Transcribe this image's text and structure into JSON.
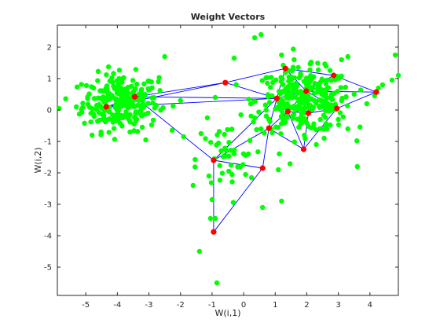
{
  "chart_data": {
    "type": "scatter",
    "title": "Weight Vectors",
    "xlabel": "W(i,1)",
    "ylabel": "W(i,2)",
    "xlim": [
      -5.9,
      4.9
    ],
    "ylim": [
      -5.9,
      2.7
    ],
    "xticks": [
      -5,
      -4,
      -3,
      -2,
      -1,
      0,
      1,
      2,
      3,
      4
    ],
    "yticks": [
      -5,
      -4,
      -3,
      -2,
      -1,
      0,
      1,
      2
    ],
    "grid": false,
    "box": true,
    "colors": {
      "data": "#00ff00",
      "weights": "#ff0000",
      "edges": "#0000ff",
      "axes": "#262626"
    },
    "clusters": [
      {
        "cx": -3.9,
        "cy": 0.25,
        "sx": 0.6,
        "sy": 0.45,
        "n": 260
      },
      {
        "cx": 1.9,
        "cy": 0.3,
        "sx": 0.75,
        "sy": 0.5,
        "n": 300
      },
      {
        "cx": -0.6,
        "cy": -1.6,
        "sx": 0.45,
        "sy": 0.6,
        "n": 40
      }
    ],
    "outliers": [
      [
        -5.85,
        0.05
      ],
      [
        -5.3,
        0.1
      ],
      [
        -4.75,
        0.7
      ],
      [
        -4.8,
        -0.8
      ],
      [
        -3.6,
        -0.7
      ],
      [
        -3.1,
        -0.95
      ],
      [
        -2.5,
        1.7
      ],
      [
        -2.7,
        0.9
      ],
      [
        -2.0,
        0.3
      ],
      [
        -1.9,
        -0.85
      ],
      [
        -1.35,
        -0.75
      ],
      [
        -1.15,
        -0.25
      ],
      [
        -0.3,
        1.65
      ],
      [
        0.35,
        2.3
      ],
      [
        0.55,
        2.4
      ],
      [
        0.55,
        -0.6
      ],
      [
        0.35,
        -0.25
      ],
      [
        -0.9,
        0.4
      ],
      [
        -1.0,
        -2.85
      ],
      [
        -0.9,
        -3.45
      ],
      [
        -1.05,
        -3.45
      ],
      [
        -0.85,
        -5.5
      ],
      [
        -1.4,
        -4.5
      ],
      [
        -1.6,
        -2.4
      ],
      [
        -1.1,
        -2.1
      ],
      [
        -0.4,
        -1.75
      ],
      [
        0.15,
        -1.4
      ],
      [
        0.6,
        -3.1
      ],
      [
        1.2,
        -2.9
      ],
      [
        1.1,
        -1.9
      ],
      [
        2.3,
        -1.1
      ],
      [
        2.55,
        -0.9
      ],
      [
        3.3,
        -0.6
      ],
      [
        3.6,
        -1.8
      ],
      [
        3.0,
        -0.3
      ],
      [
        3.5,
        0.5
      ],
      [
        4.7,
        0.95
      ],
      [
        4.9,
        1.1
      ],
      [
        4.8,
        1.75
      ],
      [
        4.4,
        0.8
      ],
      [
        4.15,
        0.45
      ],
      [
        3.9,
        0.2
      ],
      [
        3.1,
        1.6
      ],
      [
        3.3,
        1.7
      ],
      [
        1.6,
        1.6
      ],
      [
        1.2,
        1.75
      ]
    ],
    "weights": [
      [
        -4.35,
        0.1
      ],
      [
        -3.45,
        0.42
      ],
      [
        -0.58,
        0.87
      ],
      [
        1.32,
        1.32
      ],
      [
        2.85,
        1.1
      ],
      [
        4.2,
        0.57
      ],
      [
        1.05,
        0.37
      ],
      [
        1.98,
        0.6
      ],
      [
        1.4,
        -0.05
      ],
      [
        2.05,
        -0.1
      ],
      [
        2.95,
        0.05
      ],
      [
        0.8,
        -0.58
      ],
      [
        1.9,
        -1.25
      ],
      [
        -0.95,
        -1.6
      ],
      [
        0.6,
        -1.85
      ],
      [
        -0.95,
        -3.88
      ]
    ],
    "edges": [
      [
        0,
        1
      ],
      [
        0,
        2
      ],
      [
        0,
        6
      ],
      [
        1,
        6
      ],
      [
        1,
        13
      ],
      [
        1,
        2
      ],
      [
        2,
        3
      ],
      [
        2,
        6
      ],
      [
        3,
        4
      ],
      [
        3,
        6
      ],
      [
        3,
        7
      ],
      [
        4,
        5
      ],
      [
        4,
        7
      ],
      [
        5,
        7
      ],
      [
        5,
        10
      ],
      [
        6,
        7
      ],
      [
        6,
        8
      ],
      [
        6,
        11
      ],
      [
        7,
        8
      ],
      [
        7,
        9
      ],
      [
        7,
        10
      ],
      [
        8,
        9
      ],
      [
        8,
        11
      ],
      [
        8,
        12
      ],
      [
        9,
        10
      ],
      [
        9,
        12
      ],
      [
        10,
        12
      ],
      [
        11,
        13
      ],
      [
        11,
        14
      ],
      [
        13,
        14
      ],
      [
        13,
        15
      ],
      [
        14,
        15
      ],
      [
        11,
        12
      ],
      [
        6,
        13
      ]
    ]
  }
}
